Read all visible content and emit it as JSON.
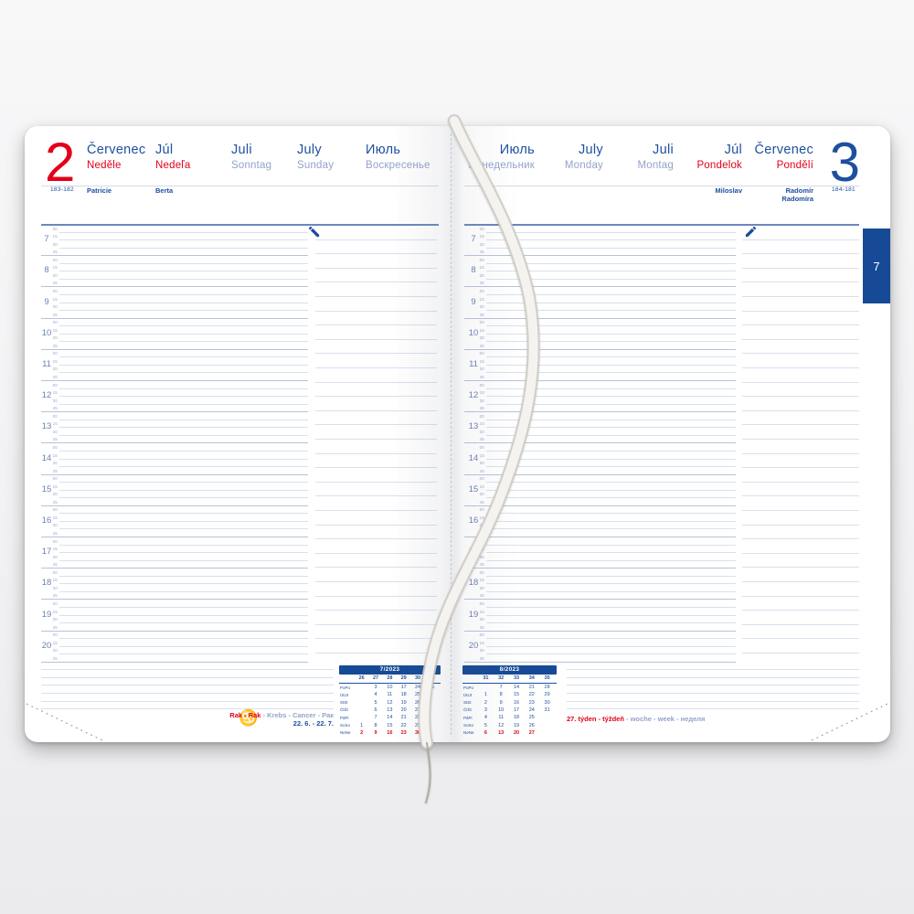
{
  "colors": {
    "blue": "#1d4f9f",
    "red": "#e2001a",
    "muted_day": "#94a3c8",
    "tab_blue": "#164a96"
  },
  "week_tab": {
    "label": "7"
  },
  "schedule": {
    "hours": [
      "7",
      "8",
      "9",
      "10",
      "11",
      "12",
      "13",
      "14",
      "15",
      "16",
      "17",
      "18",
      "19",
      "20"
    ],
    "minutes": [
      "00",
      "15",
      "30",
      "45"
    ]
  },
  "left_page": {
    "day_number": "2",
    "year_day_counter": "183-182",
    "header_columns": [
      {
        "month": "Červenec",
        "day": "Neděle",
        "emphasis": "red",
        "name_day": "Patricie"
      },
      {
        "month": "Júl",
        "day": "Nedeľa",
        "emphasis": "red",
        "name_day": "Berta"
      },
      {
        "month": "Juli",
        "day": "Sonntag",
        "emphasis": "muted",
        "name_day": ""
      },
      {
        "month": "July",
        "day": "Sunday",
        "emphasis": "muted",
        "name_day": ""
      },
      {
        "month": "Июль",
        "day": "Воскресенье",
        "emphasis": "muted",
        "name_day": ""
      }
    ],
    "zodiac": {
      "names_local": "Rak - Rak",
      "names_foreign": " - Krebs - Cancer - Рак",
      "date_range": "22. 6. - 22. 7."
    },
    "mini_calendar": {
      "title": "7/2023",
      "week_numbers": [
        "26",
        "27",
        "28",
        "29",
        "30",
        "31"
      ],
      "day_rows": [
        {
          "label": "PoPo",
          "cells": [
            "",
            "3",
            "10",
            "17",
            "24",
            "31"
          ],
          "is_sunday": false
        },
        {
          "label": "ÚtUt",
          "cells": [
            "",
            "4",
            "11",
            "18",
            "25",
            ""
          ],
          "is_sunday": false
        },
        {
          "label": "StSt",
          "cells": [
            "",
            "5",
            "12",
            "19",
            "26",
            ""
          ],
          "is_sunday": false
        },
        {
          "label": "ČtŠt",
          "cells": [
            "",
            "6",
            "13",
            "20",
            "27",
            ""
          ],
          "is_sunday": false
        },
        {
          "label": "PáPi",
          "cells": [
            "",
            "7",
            "14",
            "21",
            "28",
            ""
          ],
          "is_sunday": false
        },
        {
          "label": "SoSo",
          "cells": [
            "1",
            "8",
            "15",
            "22",
            "29",
            ""
          ],
          "is_sunday": false
        },
        {
          "label": "NeNe",
          "cells": [
            "2",
            "9",
            "16",
            "23",
            "30",
            ""
          ],
          "is_sunday": true
        }
      ]
    }
  },
  "right_page": {
    "day_number": "3",
    "year_day_counter": "184-181",
    "header_columns": [
      {
        "month": "Июль",
        "day": "Понедельник",
        "emphasis": "muted",
        "name_day": ""
      },
      {
        "month": "July",
        "day": "Monday",
        "emphasis": "muted",
        "name_day": ""
      },
      {
        "month": "Juli",
        "day": "Montag",
        "emphasis": "muted",
        "name_day": ""
      },
      {
        "month": "Júl",
        "day": "Pondelok",
        "emphasis": "red",
        "name_day": "Miloslav"
      },
      {
        "month": "Červenec",
        "day": "Pondělí",
        "emphasis": "red",
        "name_day": "Radomír",
        "name_day2": "Radomíra"
      }
    ],
    "week_line": {
      "local": "27. týden - týždeň",
      "foreign": " - woche - week - неделя"
    },
    "mini_calendar": {
      "title": "8/2023",
      "week_numbers": [
        "31",
        "32",
        "33",
        "34",
        "35"
      ],
      "day_rows": [
        {
          "label": "PoPo",
          "cells": [
            "",
            "7",
            "14",
            "21",
            "28"
          ],
          "is_sunday": false
        },
        {
          "label": "ÚtUt",
          "cells": [
            "1",
            "8",
            "15",
            "22",
            "29"
          ],
          "is_sunday": false
        },
        {
          "label": "StSt",
          "cells": [
            "2",
            "9",
            "16",
            "23",
            "30"
          ],
          "is_sunday": false
        },
        {
          "label": "ČtŠt",
          "cells": [
            "3",
            "10",
            "17",
            "24",
            "31"
          ],
          "is_sunday": false
        },
        {
          "label": "PáPi",
          "cells": [
            "4",
            "11",
            "18",
            "25",
            ""
          ],
          "is_sunday": false
        },
        {
          "label": "SoSo",
          "cells": [
            "5",
            "12",
            "19",
            "26",
            ""
          ],
          "is_sunday": false
        },
        {
          "label": "NeNe",
          "cells": [
            "6",
            "13",
            "20",
            "27",
            ""
          ],
          "is_sunday": true
        }
      ]
    }
  }
}
